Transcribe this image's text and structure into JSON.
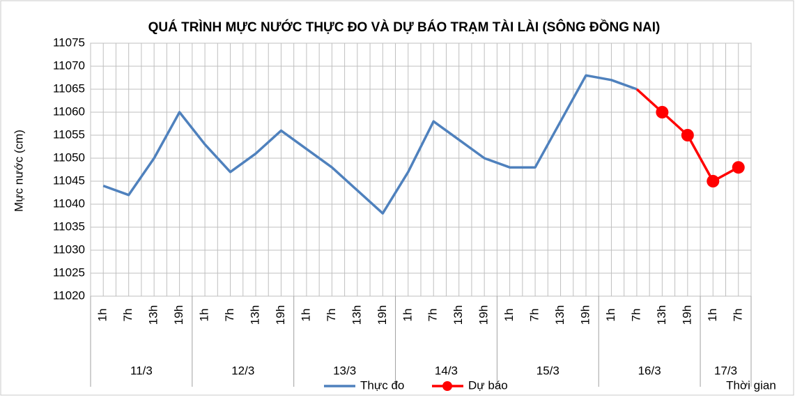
{
  "chart_data": {
    "type": "line",
    "title": "QUÁ TRÌNH MỰC NƯỚC THỰC ĐO VÀ DỰ BÁO TRẠM TÀI LÀI (SÔNG ĐỒNG NAI)",
    "y_label": "Mực nước (cm)",
    "x_label": "Thời gian",
    "days": [
      {
        "label": "11/3",
        "hours": [
          "1h",
          "7h",
          "13h",
          "19h"
        ]
      },
      {
        "label": "12/3",
        "hours": [
          "1h",
          "7h",
          "13h",
          "19h"
        ]
      },
      {
        "label": "13/3",
        "hours": [
          "1h",
          "7h",
          "13h",
          "19h"
        ]
      },
      {
        "label": "14/3",
        "hours": [
          "1h",
          "7h",
          "13h",
          "19h"
        ]
      },
      {
        "label": "15/3",
        "hours": [
          "1h",
          "7h",
          "13h",
          "19h"
        ]
      },
      {
        "label": "16/3",
        "hours": [
          "1h",
          "7h",
          "13h",
          "19h"
        ]
      },
      {
        "label": "17/3",
        "hours": [
          "1h",
          "7h"
        ]
      }
    ],
    "series": [
      {
        "name": "Thực đo",
        "color": "#4f81bd",
        "markers": false,
        "values": [
          11044,
          11042,
          11050,
          11060,
          11053,
          11047,
          11051,
          11056,
          11052,
          11048,
          11043,
          11038,
          11047,
          11058,
          11054,
          11050,
          11048,
          11048,
          11058,
          11068,
          11067,
          11065,
          null,
          null,
          null,
          null
        ]
      },
      {
        "name": "Dự báo",
        "color": "#ff0000",
        "markers": true,
        "values": [
          null,
          null,
          null,
          null,
          null,
          null,
          null,
          null,
          null,
          null,
          null,
          null,
          null,
          null,
          null,
          null,
          null,
          null,
          null,
          null,
          null,
          11065,
          11060,
          11055,
          11045,
          11048
        ]
      }
    ],
    "ylim": [
      11020,
      11075
    ],
    "yticks": [
      11020,
      11025,
      11030,
      11035,
      11040,
      11045,
      11050,
      11055,
      11060,
      11065,
      11070,
      11075
    ],
    "grid": true,
    "legend": "bottom"
  }
}
